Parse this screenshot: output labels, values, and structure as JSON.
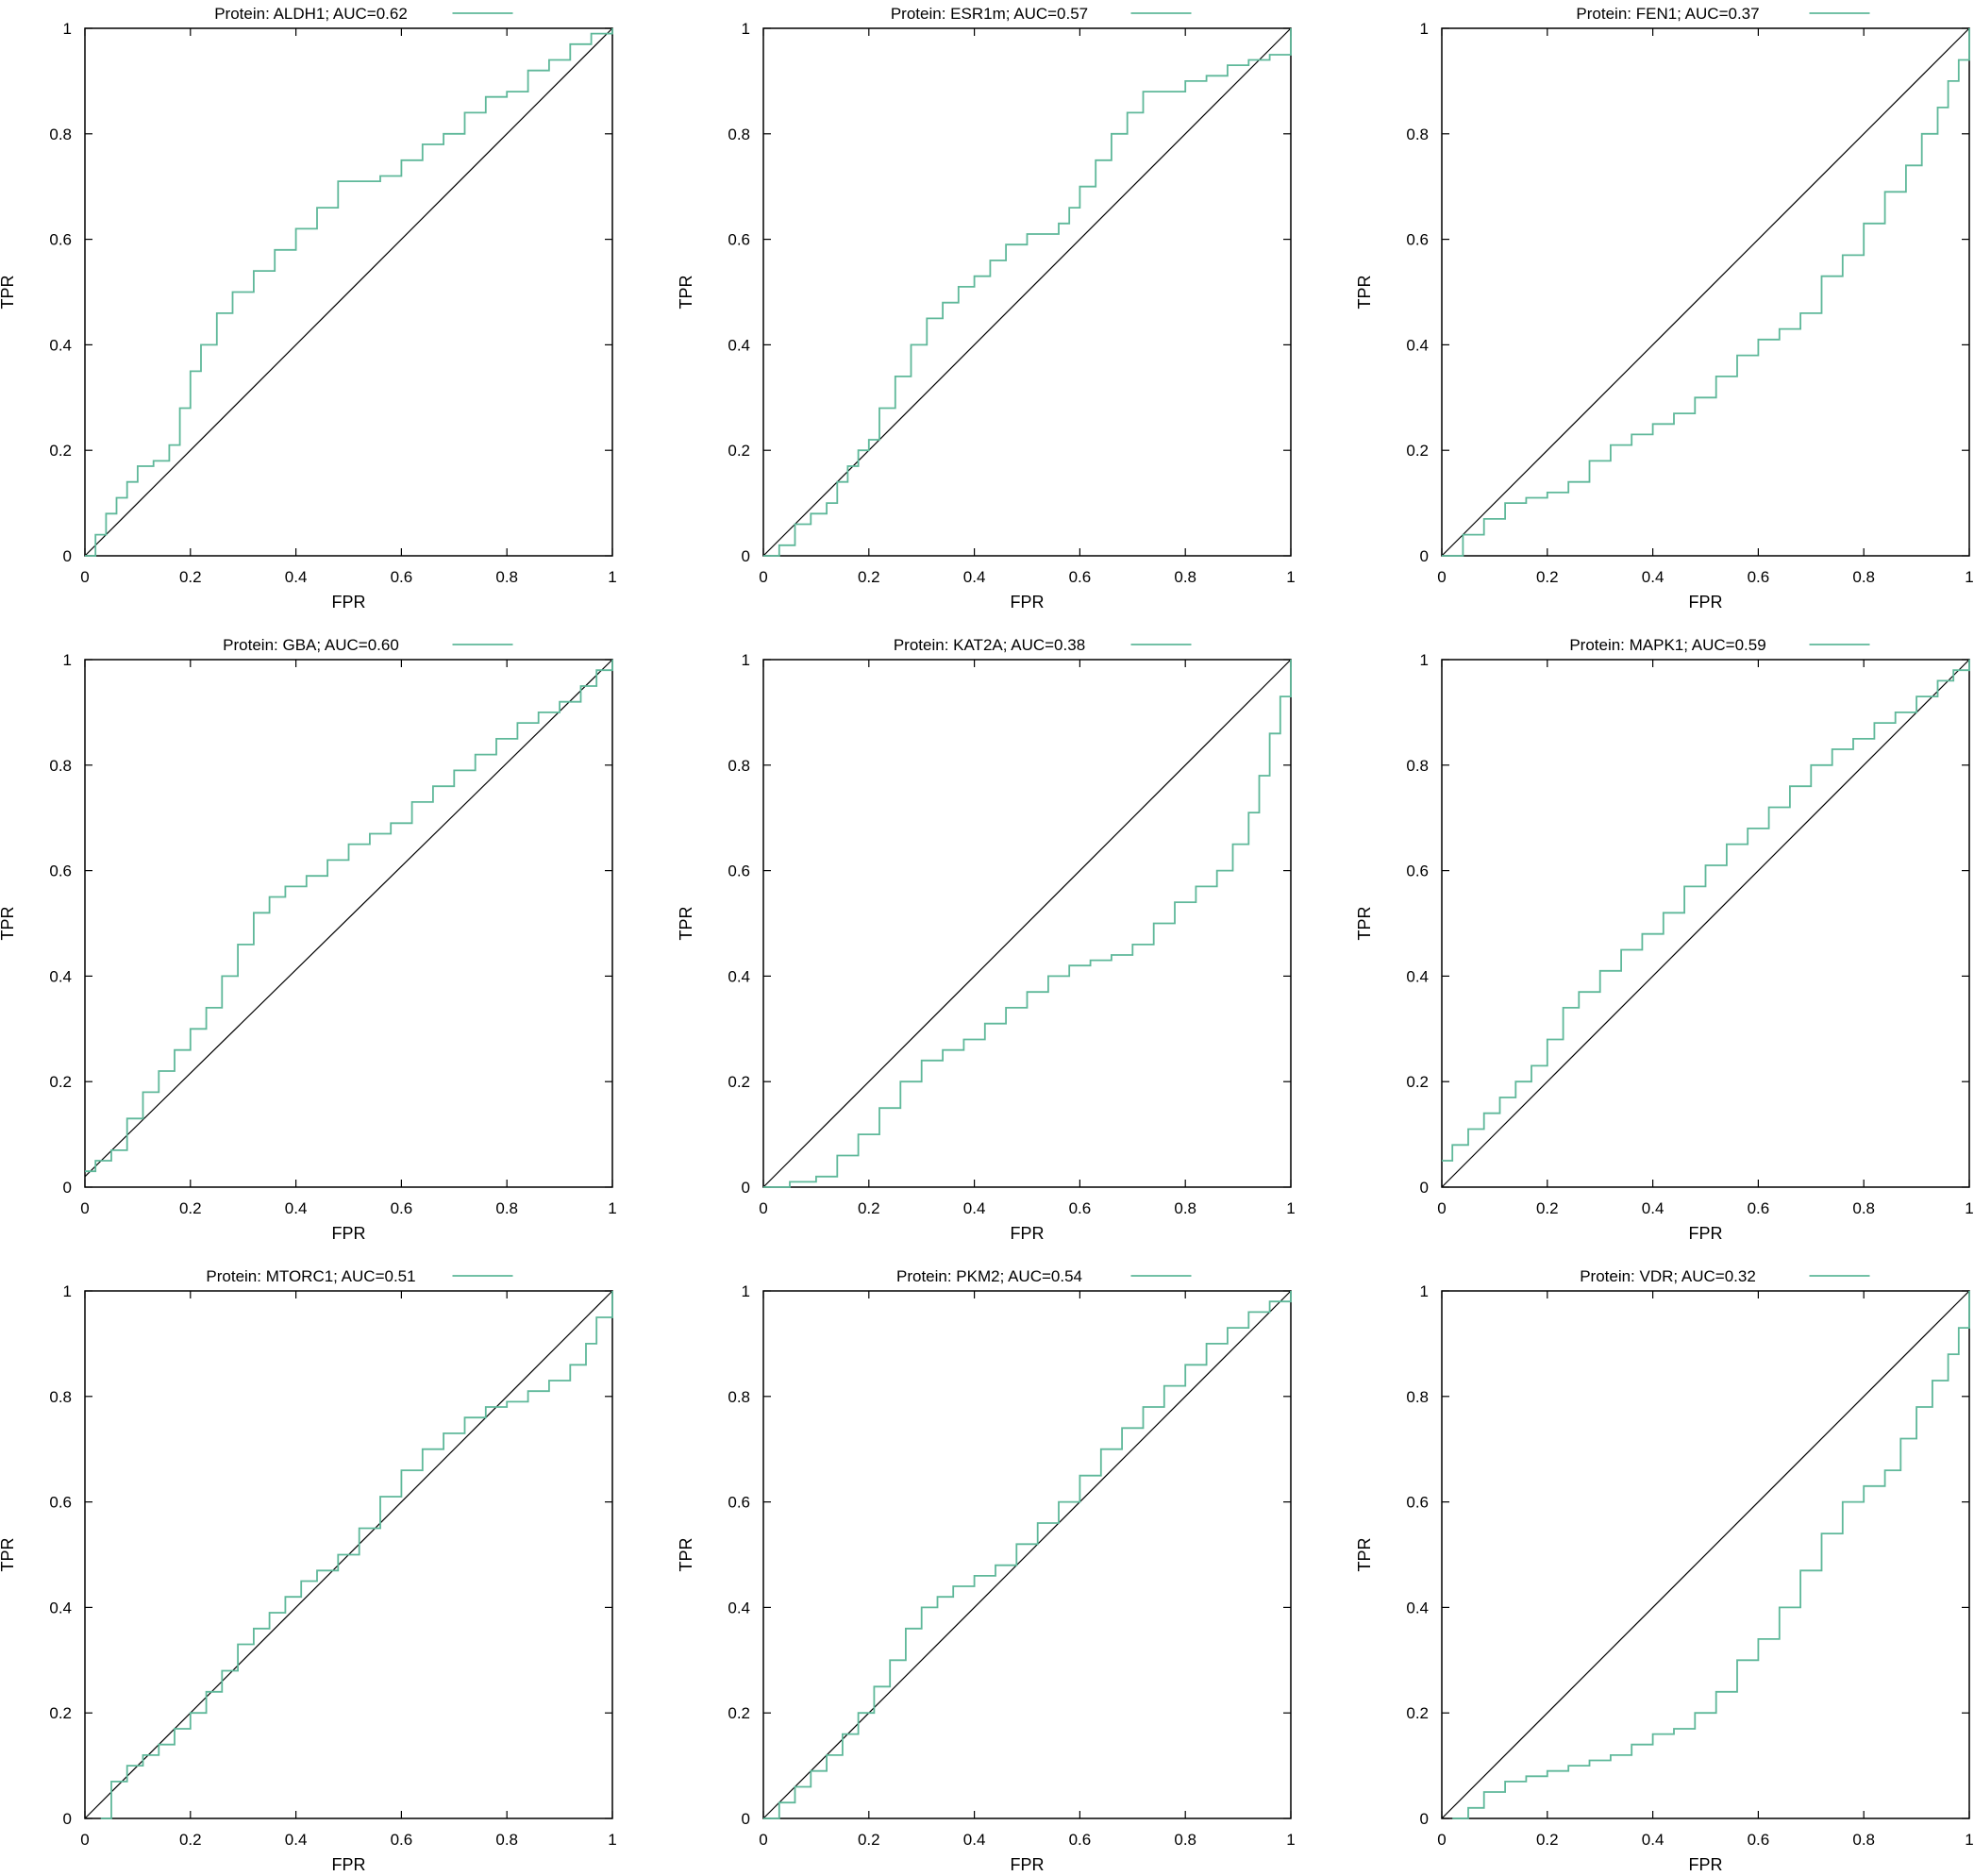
{
  "figure": {
    "xlabel": "FPR",
    "ylabel": "TPR",
    "curve_color": "#5fb89a",
    "reference_color": "#000000",
    "xticks": [
      "0",
      "0.2",
      "0.4",
      "0.6",
      "0.8",
      "1"
    ],
    "yticks": [
      "0",
      "0.2",
      "0.4",
      "0.6",
      "0.8",
      "1"
    ]
  },
  "chart_data": [
    {
      "type": "line",
      "title": "Protein: ALDH1; AUC=0.62",
      "legend": "Protein: ALDH1; AUC=0.62",
      "legend_position": "top",
      "xlabel": "FPR",
      "ylabel": "TPR",
      "xlim": [
        0,
        1
      ],
      "ylim": [
        0,
        1
      ],
      "grid": false,
      "series": [
        {
          "x": [
            0,
            0.02,
            0.04,
            0.06,
            0.08,
            0.1,
            0.13,
            0.16,
            0.18,
            0.2,
            0.22,
            0.25,
            0.28,
            0.32,
            0.36,
            0.4,
            0.44,
            0.48,
            0.52,
            0.56,
            0.6,
            0.64,
            0.68,
            0.72,
            0.76,
            0.8,
            0.84,
            0.88,
            0.92,
            0.96,
            1.0
          ],
          "y": [
            0,
            0.04,
            0.08,
            0.11,
            0.14,
            0.17,
            0.18,
            0.21,
            0.28,
            0.35,
            0.4,
            0.46,
            0.5,
            0.54,
            0.58,
            0.62,
            0.66,
            0.71,
            0.71,
            0.72,
            0.75,
            0.78,
            0.8,
            0.84,
            0.87,
            0.88,
            0.92,
            0.94,
            0.97,
            0.99,
            1.0
          ]
        },
        {
          "x": [
            0,
            1
          ],
          "y": [
            0,
            1
          ]
        }
      ]
    },
    {
      "type": "line",
      "title": "Protein: ESR1m; AUC=0.57",
      "legend": "Protein: ESR1m; AUC=0.57",
      "legend_position": "top",
      "xlabel": "FPR",
      "ylabel": "TPR",
      "xlim": [
        0,
        1
      ],
      "ylim": [
        0,
        1
      ],
      "grid": false,
      "series": [
        {
          "x": [
            0,
            0.03,
            0.06,
            0.09,
            0.12,
            0.14,
            0.16,
            0.18,
            0.2,
            0.22,
            0.25,
            0.28,
            0.31,
            0.34,
            0.37,
            0.4,
            0.43,
            0.46,
            0.5,
            0.53,
            0.56,
            0.58,
            0.6,
            0.63,
            0.66,
            0.69,
            0.72,
            0.76,
            0.8,
            0.84,
            0.88,
            0.92,
            0.96,
            1.0
          ],
          "y": [
            0,
            0.02,
            0.06,
            0.08,
            0.1,
            0.14,
            0.17,
            0.2,
            0.22,
            0.28,
            0.34,
            0.4,
            0.45,
            0.48,
            0.51,
            0.53,
            0.56,
            0.59,
            0.61,
            0.61,
            0.63,
            0.66,
            0.7,
            0.75,
            0.8,
            0.84,
            0.88,
            0.88,
            0.9,
            0.91,
            0.93,
            0.94,
            0.95,
            1.0
          ]
        },
        {
          "x": [
            0,
            1
          ],
          "y": [
            0,
            1
          ]
        }
      ]
    },
    {
      "type": "line",
      "title": "Protein: FEN1; AUC=0.37",
      "legend": "Protein: FEN1; AUC=0.37",
      "legend_position": "top",
      "xlabel": "FPR",
      "ylabel": "TPR",
      "xlim": [
        0,
        1
      ],
      "ylim": [
        0,
        1
      ],
      "grid": false,
      "series": [
        {
          "x": [
            0,
            0.04,
            0.08,
            0.12,
            0.16,
            0.2,
            0.24,
            0.28,
            0.32,
            0.36,
            0.4,
            0.44,
            0.48,
            0.52,
            0.56,
            0.6,
            0.64,
            0.68,
            0.72,
            0.76,
            0.8,
            0.84,
            0.88,
            0.91,
            0.94,
            0.96,
            0.98,
            1.0
          ],
          "y": [
            0,
            0.04,
            0.07,
            0.1,
            0.11,
            0.12,
            0.14,
            0.18,
            0.21,
            0.23,
            0.25,
            0.27,
            0.3,
            0.34,
            0.38,
            0.41,
            0.43,
            0.46,
            0.53,
            0.57,
            0.63,
            0.69,
            0.74,
            0.8,
            0.85,
            0.9,
            0.94,
            1.0
          ]
        },
        {
          "x": [
            0,
            1
          ],
          "y": [
            0,
            1
          ]
        }
      ]
    },
    {
      "type": "line",
      "title": "Protein: GBA; AUC=0.60",
      "legend": "Protein: GBA; AUC=0.60",
      "legend_position": "top",
      "xlabel": "FPR",
      "ylabel": "TPR",
      "xlim": [
        0,
        1
      ],
      "ylim": [
        0,
        1
      ],
      "grid": false,
      "series": [
        {
          "x": [
            0,
            0.02,
            0.05,
            0.08,
            0.11,
            0.14,
            0.17,
            0.2,
            0.23,
            0.26,
            0.29,
            0.32,
            0.35,
            0.38,
            0.42,
            0.46,
            0.5,
            0.54,
            0.58,
            0.62,
            0.66,
            0.7,
            0.74,
            0.78,
            0.82,
            0.86,
            0.9,
            0.94,
            0.97,
            1.0
          ],
          "y": [
            0.03,
            0.05,
            0.07,
            0.13,
            0.18,
            0.22,
            0.26,
            0.3,
            0.34,
            0.4,
            0.46,
            0.52,
            0.55,
            0.57,
            0.59,
            0.62,
            0.65,
            0.67,
            0.69,
            0.73,
            0.76,
            0.79,
            0.82,
            0.85,
            0.88,
            0.9,
            0.92,
            0.95,
            0.98,
            1.0
          ]
        },
        {
          "x": [
            0,
            1
          ],
          "y": [
            0.02,
            1
          ]
        }
      ]
    },
    {
      "type": "line",
      "title": "Protein: KAT2A; AUC=0.38",
      "legend": "Protein: KAT2A; AUC=0.38",
      "legend_position": "top",
      "xlabel": "FPR",
      "ylabel": "TPR",
      "xlim": [
        0,
        1
      ],
      "ylim": [
        0,
        1
      ],
      "grid": false,
      "series": [
        {
          "x": [
            0,
            0.05,
            0.1,
            0.14,
            0.18,
            0.22,
            0.26,
            0.3,
            0.34,
            0.38,
            0.42,
            0.46,
            0.5,
            0.54,
            0.58,
            0.62,
            0.66,
            0.7,
            0.74,
            0.78,
            0.82,
            0.86,
            0.89,
            0.92,
            0.94,
            0.96,
            0.98,
            1.0
          ],
          "y": [
            0,
            0.01,
            0.02,
            0.06,
            0.1,
            0.15,
            0.2,
            0.24,
            0.26,
            0.28,
            0.31,
            0.34,
            0.37,
            0.4,
            0.42,
            0.43,
            0.44,
            0.46,
            0.5,
            0.54,
            0.57,
            0.6,
            0.65,
            0.71,
            0.78,
            0.86,
            0.93,
            1.0
          ]
        },
        {
          "x": [
            0,
            1
          ],
          "y": [
            0,
            1
          ]
        }
      ]
    },
    {
      "type": "line",
      "title": "Protein: MAPK1; AUC=0.59",
      "legend": "Protein: MAPK1; AUC=0.59",
      "legend_position": "top",
      "xlabel": "FPR",
      "ylabel": "TPR",
      "xlim": [
        0,
        1
      ],
      "ylim": [
        0,
        1
      ],
      "grid": false,
      "series": [
        {
          "x": [
            0,
            0.02,
            0.05,
            0.08,
            0.11,
            0.14,
            0.17,
            0.2,
            0.23,
            0.26,
            0.3,
            0.34,
            0.38,
            0.42,
            0.46,
            0.5,
            0.54,
            0.58,
            0.62,
            0.66,
            0.7,
            0.74,
            0.78,
            0.82,
            0.86,
            0.9,
            0.94,
            0.97,
            1.0
          ],
          "y": [
            0.05,
            0.08,
            0.11,
            0.14,
            0.17,
            0.2,
            0.23,
            0.28,
            0.34,
            0.37,
            0.41,
            0.45,
            0.48,
            0.52,
            0.57,
            0.61,
            0.65,
            0.68,
            0.72,
            0.76,
            0.8,
            0.83,
            0.85,
            0.88,
            0.9,
            0.93,
            0.96,
            0.98,
            1.0
          ]
        },
        {
          "x": [
            0,
            1
          ],
          "y": [
            0,
            1
          ]
        }
      ]
    },
    {
      "type": "line",
      "title": "Protein: MTORC1; AUC=0.51",
      "legend": "Protein: MTORC1; AUC=0.51",
      "legend_position": "top",
      "xlabel": "FPR",
      "ylabel": "TPR",
      "xlim": [
        0,
        1
      ],
      "ylim": [
        0,
        1
      ],
      "grid": false,
      "series": [
        {
          "x": [
            0.03,
            0.05,
            0.08,
            0.11,
            0.14,
            0.17,
            0.2,
            0.23,
            0.26,
            0.29,
            0.32,
            0.35,
            0.38,
            0.41,
            0.44,
            0.48,
            0.52,
            0.56,
            0.6,
            0.64,
            0.68,
            0.72,
            0.76,
            0.8,
            0.84,
            0.88,
            0.92,
            0.95,
            0.97,
            1.0
          ],
          "y": [
            0,
            0.07,
            0.1,
            0.12,
            0.14,
            0.17,
            0.2,
            0.24,
            0.28,
            0.33,
            0.36,
            0.39,
            0.42,
            0.45,
            0.47,
            0.5,
            0.55,
            0.61,
            0.66,
            0.7,
            0.73,
            0.76,
            0.78,
            0.79,
            0.81,
            0.83,
            0.86,
            0.9,
            0.95,
            1.0
          ]
        },
        {
          "x": [
            0,
            1
          ],
          "y": [
            0,
            1
          ]
        }
      ]
    },
    {
      "type": "line",
      "title": "Protein: PKM2; AUC=0.54",
      "legend": "Protein: PKM2; AUC=0.54",
      "legend_position": "top",
      "xlabel": "FPR",
      "ylabel": "TPR",
      "xlim": [
        0,
        1
      ],
      "ylim": [
        0,
        1
      ],
      "grid": false,
      "series": [
        {
          "x": [
            0,
            0.03,
            0.06,
            0.09,
            0.12,
            0.15,
            0.18,
            0.21,
            0.24,
            0.27,
            0.3,
            0.33,
            0.36,
            0.4,
            0.44,
            0.48,
            0.52,
            0.56,
            0.6,
            0.64,
            0.68,
            0.72,
            0.76,
            0.8,
            0.84,
            0.88,
            0.92,
            0.96,
            1.0
          ],
          "y": [
            0,
            0.03,
            0.06,
            0.09,
            0.12,
            0.16,
            0.2,
            0.25,
            0.3,
            0.36,
            0.4,
            0.42,
            0.44,
            0.46,
            0.48,
            0.52,
            0.56,
            0.6,
            0.65,
            0.7,
            0.74,
            0.78,
            0.82,
            0.86,
            0.9,
            0.93,
            0.96,
            0.98,
            1.0
          ]
        },
        {
          "x": [
            0,
            1
          ],
          "y": [
            0,
            1
          ]
        }
      ]
    },
    {
      "type": "line",
      "title": "Protein: VDR; AUC=0.32",
      "legend": "Protein: VDR; AUC=0.32",
      "legend_position": "top",
      "xlabel": "FPR",
      "ylabel": "TPR",
      "xlim": [
        0,
        1
      ],
      "ylim": [
        0,
        1
      ],
      "grid": false,
      "series": [
        {
          "x": [
            0.02,
            0.05,
            0.08,
            0.12,
            0.16,
            0.2,
            0.24,
            0.28,
            0.32,
            0.36,
            0.4,
            0.44,
            0.48,
            0.52,
            0.56,
            0.6,
            0.64,
            0.68,
            0.72,
            0.76,
            0.8,
            0.84,
            0.87,
            0.9,
            0.93,
            0.96,
            0.98,
            1.0
          ],
          "y": [
            0,
            0.02,
            0.05,
            0.07,
            0.08,
            0.09,
            0.1,
            0.11,
            0.12,
            0.14,
            0.16,
            0.17,
            0.2,
            0.24,
            0.3,
            0.34,
            0.4,
            0.47,
            0.54,
            0.6,
            0.63,
            0.66,
            0.72,
            0.78,
            0.83,
            0.88,
            0.93,
            1.0
          ]
        },
        {
          "x": [
            0,
            1
          ],
          "y": [
            0,
            1
          ]
        }
      ]
    }
  ]
}
